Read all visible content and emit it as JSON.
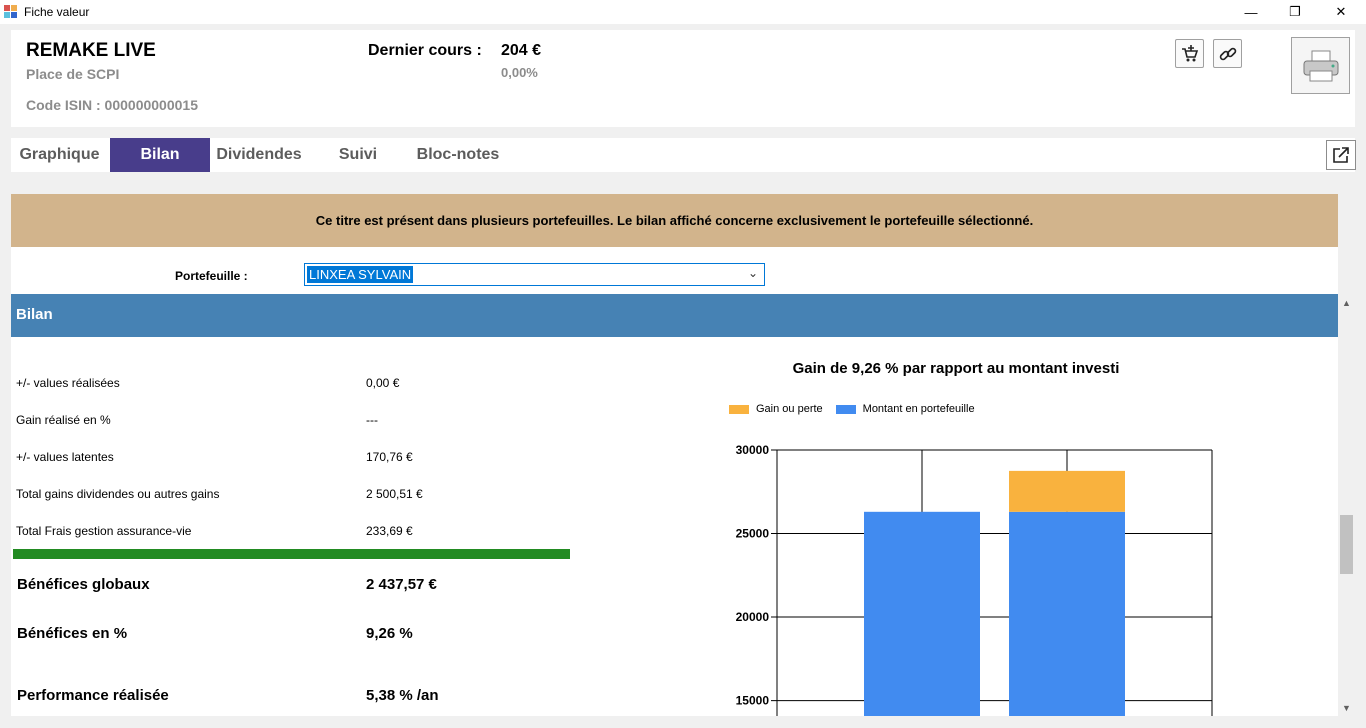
{
  "window": {
    "title": "Fiche valeur",
    "minimize_glyph": "—",
    "restore_glyph": "❐",
    "close_glyph": "✕"
  },
  "header": {
    "name": "REMAKE LIVE",
    "type": "Place de SCPI",
    "isin": "Code ISIN : 000000000015",
    "last_price_label": "Dernier cours :",
    "last_price_value": "204 €",
    "change_pct": "0,00%"
  },
  "tabs": [
    {
      "label": "Graphique",
      "active": false
    },
    {
      "label": "Bilan",
      "active": true
    },
    {
      "label": "Dividendes",
      "active": false
    },
    {
      "label": "Suivi",
      "active": false
    },
    {
      "label": "Bloc-notes",
      "active": false
    }
  ],
  "banner": "Ce titre est présent dans plusieurs portefeuilles. Le bilan affiché concerne exclusivement le portefeuille sélectionné.",
  "portfolio": {
    "label": "Portefeuille :",
    "selected": "LINXEA SYLVAIN"
  },
  "section": {
    "title": "Bilan"
  },
  "bilan_rows": [
    {
      "label": "+/- values réalisées",
      "value": "0,00 €"
    },
    {
      "label": "Gain réalisé en %",
      "value": "---"
    },
    {
      "label": "+/- values latentes",
      "value": "170,76 €"
    },
    {
      "label": "Total gains dividendes ou autres gains",
      "value": "2 500,51 €"
    },
    {
      "label": "Total Frais gestion assurance-vie",
      "value": "233,69 €"
    }
  ],
  "summary": [
    {
      "label": "Bénéfices globaux",
      "value": "2 437,57 €"
    },
    {
      "label": "Bénéfices en %",
      "value": "9,26 %"
    },
    {
      "label": "Performance réalisée",
      "value": "5,38 % /an"
    }
  ],
  "colors": {
    "tab_active": "#483d8b",
    "banner": "#d2b48c",
    "section_header": "#4682b4",
    "green_bar": "#228b22",
    "gain": "#f9b23e",
    "portfolio": "#418bf0"
  },
  "chart_data": {
    "type": "bar",
    "stacked": true,
    "title": "Gain de 9,26 % par rapport au montant investi",
    "legend_position": "top-left",
    "grid": true,
    "xlabel": "",
    "ylabel": "",
    "ylim_visible": [
      13000,
      30000
    ],
    "yticks": [
      15000,
      20000,
      25000,
      30000
    ],
    "categories": [
      "",
      ""
    ],
    "series": [
      {
        "name": "Montant en portefeuille",
        "color": "#418bf0",
        "values": [
          26300,
          26300
        ]
      },
      {
        "name": "Gain ou perte",
        "color": "#f9b23e",
        "values": [
          0,
          2450
        ]
      }
    ]
  }
}
